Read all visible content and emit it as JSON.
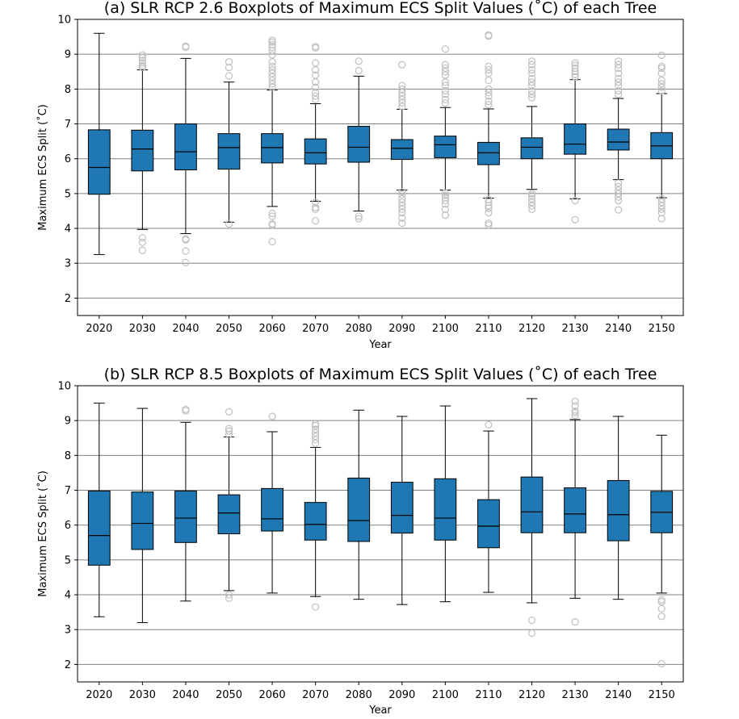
{
  "chart_data": [
    {
      "type": "boxplot",
      "title": "(a) SLR RCP 2.6 Boxplots of Maximum ECS Split Values ($^\\circ$C) of each Tree",
      "title_display": "(a) SLR RCP 2.6 Boxplots of Maximum ECS Split Values (˚C) of each Tree",
      "xlabel": "Year",
      "ylabel": "Maximum ECS Split (˚C)",
      "ylim": [
        1.5,
        10
      ],
      "yticks": [
        2,
        3,
        4,
        5,
        6,
        7,
        8,
        9,
        10
      ],
      "grid": "horizontal",
      "box_color": "#1f77b4",
      "outlier_color": "#c0c0c0",
      "categories": [
        "2020",
        "2030",
        "2040",
        "2050",
        "2060",
        "2070",
        "2080",
        "2090",
        "2100",
        "2110",
        "2120",
        "2130",
        "2140",
        "2150"
      ],
      "boxes": [
        {
          "whislo": 3.25,
          "q1": 4.98,
          "med": 5.75,
          "q3": 6.83,
          "whishi": 9.6,
          "fliers": []
        },
        {
          "whislo": 3.97,
          "q1": 5.65,
          "med": 6.28,
          "q3": 6.82,
          "whishi": 8.55,
          "fliers": [
            3.37,
            3.6,
            3.73,
            8.62,
            8.68,
            8.75,
            8.82,
            8.9,
            8.98
          ]
        },
        {
          "whislo": 3.85,
          "q1": 5.68,
          "med": 6.2,
          "q3": 7.0,
          "whishi": 8.88,
          "fliers": [
            3.02,
            3.35,
            3.67,
            3.7,
            9.2,
            9.23
          ]
        },
        {
          "whislo": 4.18,
          "q1": 5.7,
          "med": 6.32,
          "q3": 6.72,
          "whishi": 8.2,
          "fliers": [
            4.13,
            8.38,
            8.62,
            8.78
          ]
        },
        {
          "whislo": 4.63,
          "q1": 5.88,
          "med": 6.32,
          "q3": 6.72,
          "whishi": 7.97,
          "fliers": [
            3.62,
            4.1,
            4.13,
            4.35,
            4.43,
            8.05,
            8.15,
            8.25,
            8.35,
            8.45,
            8.55,
            8.65,
            8.78,
            8.98,
            9.1,
            9.2,
            9.28,
            9.35,
            9.4
          ]
        },
        {
          "whislo": 4.78,
          "q1": 5.85,
          "med": 6.17,
          "q3": 6.57,
          "whishi": 7.58,
          "fliers": [
            4.22,
            4.55,
            4.6,
            4.75,
            7.7,
            7.8,
            7.9,
            8.05,
            8.2,
            8.4,
            8.55,
            8.75,
            9.18,
            9.22
          ]
        },
        {
          "whislo": 4.5,
          "q1": 5.9,
          "med": 6.33,
          "q3": 6.93,
          "whishi": 8.37,
          "fliers": [
            4.28,
            4.35,
            8.53,
            8.8
          ]
        },
        {
          "whislo": 5.1,
          "q1": 5.98,
          "med": 6.3,
          "q3": 6.55,
          "whishi": 7.42,
          "fliers": [
            4.15,
            4.3,
            4.45,
            4.55,
            4.65,
            4.75,
            4.85,
            4.97,
            5.05,
            7.5,
            7.6,
            7.7,
            7.8,
            7.9,
            8.0,
            8.1,
            8.7
          ]
        },
        {
          "whislo": 5.1,
          "q1": 6.03,
          "med": 6.4,
          "q3": 6.65,
          "whishi": 7.47,
          "fliers": [
            4.38,
            4.55,
            4.7,
            4.8,
            4.88,
            4.95,
            5.02,
            7.6,
            7.7,
            7.85,
            7.95,
            8.1,
            8.2,
            8.4,
            8.5,
            8.6,
            8.7,
            9.15
          ]
        },
        {
          "whislo": 4.87,
          "q1": 5.83,
          "med": 6.17,
          "q3": 6.47,
          "whishi": 7.43,
          "fliers": [
            4.1,
            4.15,
            4.45,
            4.58,
            4.65,
            4.75,
            4.83,
            7.55,
            7.65,
            7.8,
            7.9,
            8.0,
            8.25,
            8.45,
            8.55,
            8.65,
            9.52,
            9.55
          ]
        },
        {
          "whislo": 5.12,
          "q1": 6.0,
          "med": 6.33,
          "q3": 6.6,
          "whishi": 7.5,
          "fliers": [
            4.55,
            4.65,
            4.75,
            4.85,
            4.95,
            5.0,
            7.75,
            7.85,
            7.95,
            8.1,
            8.2,
            8.3,
            8.45,
            8.55,
            8.7,
            8.8
          ]
        },
        {
          "whislo": 4.85,
          "q1": 6.13,
          "med": 6.42,
          "q3": 7.0,
          "whishi": 8.27,
          "fliers": [
            4.25,
            4.8,
            8.35,
            8.42,
            8.5,
            8.6,
            8.68,
            8.75
          ]
        },
        {
          "whislo": 5.4,
          "q1": 6.25,
          "med": 6.48,
          "q3": 6.85,
          "whishi": 7.73,
          "fliers": [
            4.53,
            4.8,
            4.9,
            5.0,
            5.1,
            5.2,
            5.3,
            7.85,
            7.95,
            8.1,
            8.2,
            8.3,
            8.45,
            8.6,
            8.7,
            8.8
          ]
        },
        {
          "whislo": 4.88,
          "q1": 6.0,
          "med": 6.37,
          "q3": 6.75,
          "whishi": 7.87,
          "fliers": [
            4.28,
            4.45,
            4.55,
            4.65,
            4.75,
            4.85,
            7.95,
            8.05,
            8.15,
            8.25,
            8.45,
            8.6,
            8.65,
            8.97
          ]
        }
      ]
    },
    {
      "type": "boxplot",
      "title": "(b) SLR RCP 8.5 Boxplots of Maximum ECS Split Values ($^\\circ$C) of each Tree",
      "title_display": "(b) SLR RCP 8.5 Boxplots of Maximum ECS Split Values (˚C) of each Tree",
      "xlabel": "Year",
      "ylabel": "Maximum ECS Split (˚C)",
      "ylim": [
        1.5,
        10
      ],
      "yticks": [
        2,
        3,
        4,
        5,
        6,
        7,
        8,
        9,
        10
      ],
      "grid": "horizontal",
      "box_color": "#1f77b4",
      "outlier_color": "#c0c0c0",
      "categories": [
        "2020",
        "2030",
        "2040",
        "2050",
        "2060",
        "2070",
        "2080",
        "2090",
        "2100",
        "2110",
        "2120",
        "2130",
        "2140",
        "2150"
      ],
      "boxes": [
        {
          "whislo": 3.37,
          "q1": 4.85,
          "med": 5.7,
          "q3": 6.98,
          "whishi": 9.5,
          "fliers": []
        },
        {
          "whislo": 3.2,
          "q1": 5.3,
          "med": 6.05,
          "q3": 6.95,
          "whishi": 9.35,
          "fliers": []
        },
        {
          "whislo": 3.82,
          "q1": 5.5,
          "med": 6.2,
          "q3": 6.98,
          "whishi": 8.95,
          "fliers": [
            9.28,
            9.32
          ]
        },
        {
          "whislo": 4.12,
          "q1": 5.75,
          "med": 6.35,
          "q3": 6.87,
          "whishi": 8.53,
          "fliers": [
            3.9,
            4.0,
            8.6,
            8.7,
            8.77,
            9.25
          ]
        },
        {
          "whislo": 4.05,
          "q1": 5.83,
          "med": 6.18,
          "q3": 7.05,
          "whishi": 8.68,
          "fliers": [
            9.12
          ]
        },
        {
          "whislo": 3.95,
          "q1": 5.57,
          "med": 6.02,
          "q3": 6.65,
          "whishi": 8.23,
          "fliers": [
            3.65,
            8.35,
            8.45,
            8.55,
            8.65,
            8.75,
            8.85,
            8.9
          ]
        },
        {
          "whislo": 3.87,
          "q1": 5.53,
          "med": 6.13,
          "q3": 7.35,
          "whishi": 9.3,
          "fliers": []
        },
        {
          "whislo": 3.72,
          "q1": 5.77,
          "med": 6.28,
          "q3": 7.23,
          "whishi": 9.12,
          "fliers": []
        },
        {
          "whislo": 3.8,
          "q1": 5.57,
          "med": 6.2,
          "q3": 7.33,
          "whishi": 9.42,
          "fliers": []
        },
        {
          "whislo": 4.07,
          "q1": 5.35,
          "med": 5.97,
          "q3": 6.73,
          "whishi": 8.7,
          "fliers": [
            8.88
          ]
        },
        {
          "whislo": 3.77,
          "q1": 5.78,
          "med": 6.38,
          "q3": 7.38,
          "whishi": 9.63,
          "fliers": [
            2.9,
            3.27
          ]
        },
        {
          "whislo": 3.9,
          "q1": 5.78,
          "med": 6.32,
          "q3": 7.07,
          "whishi": 9.03,
          "fliers": [
            3.22,
            9.15,
            9.22,
            9.27,
            9.42,
            9.55
          ]
        },
        {
          "whislo": 3.87,
          "q1": 5.55,
          "med": 6.3,
          "q3": 7.28,
          "whishi": 9.12,
          "fliers": []
        },
        {
          "whislo": 4.05,
          "q1": 5.78,
          "med": 6.37,
          "q3": 6.97,
          "whishi": 8.58,
          "fliers": [
            2.02,
            3.38,
            3.6,
            3.8,
            3.85
          ]
        }
      ]
    }
  ]
}
